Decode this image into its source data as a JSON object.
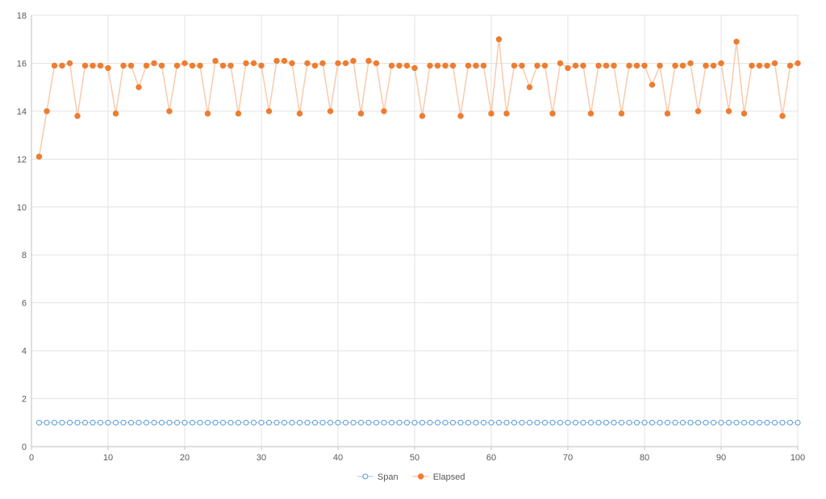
{
  "chart_data": {
    "type": "line",
    "x": [
      1,
      2,
      3,
      4,
      5,
      6,
      7,
      8,
      9,
      10,
      11,
      12,
      13,
      14,
      15,
      16,
      17,
      18,
      19,
      20,
      21,
      22,
      23,
      24,
      25,
      26,
      27,
      28,
      29,
      30,
      31,
      32,
      33,
      34,
      35,
      36,
      37,
      38,
      39,
      40,
      41,
      42,
      43,
      44,
      45,
      46,
      47,
      48,
      49,
      50,
      51,
      52,
      53,
      54,
      55,
      56,
      57,
      58,
      59,
      60,
      61,
      62,
      63,
      64,
      65,
      66,
      67,
      68,
      69,
      70,
      71,
      72,
      73,
      74,
      75,
      76,
      77,
      78,
      79,
      80,
      81,
      82,
      83,
      84,
      85,
      86,
      87,
      88,
      89,
      90,
      91,
      92,
      93,
      94,
      95,
      96,
      97,
      98,
      99,
      100
    ],
    "series": [
      {
        "name": "Span",
        "color": "#5B9BD5",
        "marker": "hollow-circle",
        "values": [
          1,
          1,
          1,
          1,
          1,
          1,
          1,
          1,
          1,
          1,
          1,
          1,
          1,
          1,
          1,
          1,
          1,
          1,
          1,
          1,
          1,
          1,
          1,
          1,
          1,
          1,
          1,
          1,
          1,
          1,
          1,
          1,
          1,
          1,
          1,
          1,
          1,
          1,
          1,
          1,
          1,
          1,
          1,
          1,
          1,
          1,
          1,
          1,
          1,
          1,
          1,
          1,
          1,
          1,
          1,
          1,
          1,
          1,
          1,
          1,
          1,
          1,
          1,
          1,
          1,
          1,
          1,
          1,
          1,
          1,
          1,
          1,
          1,
          1,
          1,
          1,
          1,
          1,
          1,
          1,
          1,
          1,
          1,
          1,
          1,
          1,
          1,
          1,
          1,
          1,
          1,
          1,
          1,
          1,
          1,
          1,
          1,
          1,
          1,
          1
        ]
      },
      {
        "name": "Elapsed",
        "color": "#ED7D31",
        "marker": "filled-circle",
        "values": [
          12.1,
          14.0,
          15.9,
          15.9,
          16.0,
          13.8,
          15.9,
          15.9,
          15.9,
          15.8,
          13.9,
          15.9,
          15.9,
          15.0,
          15.9,
          16.0,
          15.9,
          14.0,
          15.9,
          16.0,
          15.9,
          15.9,
          13.9,
          16.1,
          15.9,
          15.9,
          13.9,
          16.0,
          16.0,
          15.9,
          14.0,
          16.1,
          16.1,
          16.0,
          13.9,
          16.0,
          15.9,
          16.0,
          14.0,
          16.0,
          16.0,
          16.1,
          13.9,
          16.1,
          16.0,
          14.0,
          15.9,
          15.9,
          15.9,
          15.8,
          13.8,
          15.9,
          15.9,
          15.9,
          15.9,
          13.8,
          15.9,
          15.9,
          15.9,
          13.9,
          17.0,
          13.9,
          15.9,
          15.9,
          15.0,
          15.9,
          15.9,
          13.9,
          16.0,
          15.8,
          15.9,
          15.9,
          13.9,
          15.9,
          15.9,
          15.9,
          13.9,
          15.9,
          15.9,
          15.9,
          15.1,
          15.9,
          13.9,
          15.9,
          15.9,
          16.0,
          14.0,
          15.9,
          15.9,
          16.0,
          14.0,
          16.9,
          13.9,
          15.9,
          15.9,
          15.9,
          16.0,
          13.8,
          15.9,
          16.0
        ]
      }
    ],
    "xlim": [
      0,
      100
    ],
    "ylim": [
      0,
      18
    ],
    "x_ticks": [
      0,
      10,
      20,
      30,
      40,
      50,
      60,
      70,
      80,
      90,
      100
    ],
    "y_ticks": [
      0,
      2,
      4,
      6,
      8,
      10,
      12,
      14,
      16,
      18
    ],
    "grid": true,
    "legend_position": "bottom-center",
    "title": "",
    "xlabel": "",
    "ylabel": ""
  }
}
